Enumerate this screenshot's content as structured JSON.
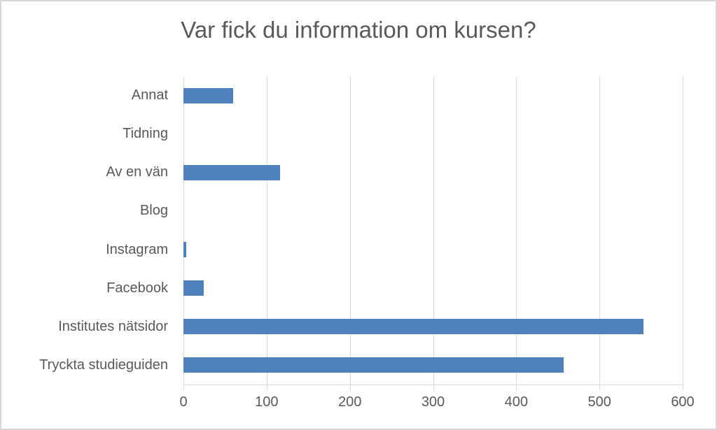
{
  "chart_data": {
    "type": "bar",
    "orientation": "horizontal",
    "title": "Var fick du information om kursen?",
    "categories": [
      "Annat",
      "Tidning",
      "Av en vän",
      "Blog",
      "Instagram",
      "Facebook",
      "Institutes nätsidor",
      "Tryckta studieguiden"
    ],
    "values": [
      60,
      0,
      116,
      0,
      3,
      24,
      553,
      457
    ],
    "xlim": [
      0,
      600
    ],
    "xticks": [
      0,
      100,
      200,
      300,
      400,
      500,
      600
    ],
    "xlabel": "",
    "ylabel": "",
    "legend": false,
    "grid": "vertical-major",
    "colors": {
      "bar": "#4F81BD",
      "gridline": "#D9D9D9",
      "axis_line": "#D9D9D9",
      "text": "#595959",
      "border": "#D7D7D7",
      "background": "#FFFFFF"
    }
  }
}
